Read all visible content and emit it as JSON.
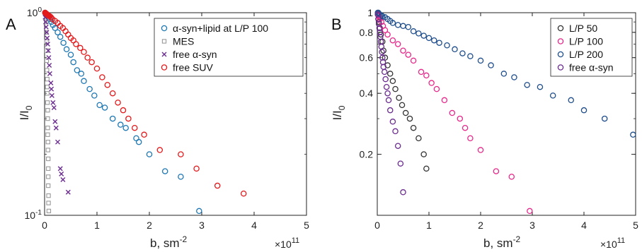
{
  "chart_data": [
    {
      "panel_label": "A",
      "type": "scatter",
      "xlabel": "b, sm",
      "xlabel_sup": "-2",
      "ylabel": "I/I",
      "ylabel_sub": "0",
      "x_multiplier_base": "×10",
      "x_multiplier_exp": "11",
      "xlim": [
        0,
        5
      ],
      "ylim": [
        0.1,
        1
      ],
      "y_scale": "log",
      "x_ticks": [
        0,
        1,
        2,
        3,
        4,
        5
      ],
      "x_tick_labels": [
        "0",
        "1",
        "2",
        "3",
        "4",
        "5"
      ],
      "y_tick_values": [
        0.1,
        1
      ],
      "y_tick_base": "10",
      "y_tick_exps": [
        "-1",
        "0"
      ],
      "legend_position": "top-right",
      "series": [
        {
          "name": "α-syn+lipid at L/P 100",
          "marker": "circle",
          "color": "#1f78b4",
          "points": [
            [
              0.01,
              1.0
            ],
            [
              0.02,
              0.99
            ],
            [
              0.03,
              0.98
            ],
            [
              0.05,
              0.97
            ],
            [
              0.07,
              0.95
            ],
            [
              0.1,
              0.93
            ],
            [
              0.13,
              0.9
            ],
            [
              0.16,
              0.87
            ],
            [
              0.2,
              0.84
            ],
            [
              0.25,
              0.8
            ],
            [
              0.3,
              0.76
            ],
            [
              0.36,
              0.71
            ],
            [
              0.42,
              0.66
            ],
            [
              0.5,
              0.62
            ],
            [
              0.55,
              0.57
            ],
            [
              0.62,
              0.52
            ],
            [
              0.7,
              0.5
            ],
            [
              0.75,
              0.46
            ],
            [
              0.86,
              0.42
            ],
            [
              0.95,
              0.39
            ],
            [
              1.05,
              0.35
            ],
            [
              1.15,
              0.34
            ],
            [
              1.3,
              0.3
            ],
            [
              1.45,
              0.28
            ],
            [
              1.55,
              0.27
            ],
            [
              1.75,
              0.24
            ],
            [
              1.8,
              0.23
            ],
            [
              2.0,
              0.2
            ],
            [
              2.3,
              0.165
            ],
            [
              2.6,
              0.155
            ],
            [
              2.95,
              0.105
            ]
          ]
        },
        {
          "name": "MES",
          "marker": "square",
          "color": "#999999",
          "points": [
            [
              0.02,
              0.98
            ],
            [
              0.03,
              0.9
            ],
            [
              0.03,
              0.8
            ],
            [
              0.035,
              0.72
            ],
            [
              0.04,
              0.65
            ],
            [
              0.04,
              0.58
            ],
            [
              0.045,
              0.52
            ],
            [
              0.05,
              0.47
            ],
            [
              0.05,
              0.43
            ],
            [
              0.05,
              0.4
            ],
            [
              0.055,
              0.36
            ],
            [
              0.06,
              0.33
            ],
            [
              0.06,
              0.3
            ],
            [
              0.06,
              0.27
            ],
            [
              0.06,
              0.25
            ],
            [
              0.065,
              0.23
            ],
            [
              0.065,
              0.21
            ],
            [
              0.07,
              0.19
            ],
            [
              0.07,
              0.17
            ],
            [
              0.07,
              0.155
            ],
            [
              0.07,
              0.14
            ],
            [
              0.075,
              0.125
            ],
            [
              0.075,
              0.115
            ],
            [
              0.08,
              0.105
            ]
          ]
        },
        {
          "name": "free α-syn",
          "marker": "x",
          "color": "#6a2c8f",
          "points": [
            [
              0.01,
              0.95
            ],
            [
              0.02,
              0.9
            ],
            [
              0.03,
              0.85
            ],
            [
              0.04,
              0.8
            ],
            [
              0.05,
              0.75
            ],
            [
              0.06,
              0.7
            ],
            [
              0.07,
              0.65
            ],
            [
              0.08,
              0.6
            ],
            [
              0.09,
              0.55
            ],
            [
              0.1,
              0.5
            ],
            [
              0.12,
              0.45
            ],
            [
              0.13,
              0.42
            ],
            [
              0.14,
              0.39
            ],
            [
              0.16,
              0.36
            ],
            [
              0.18,
              0.34
            ],
            [
              0.2,
              0.29
            ],
            [
              0.22,
              0.27
            ],
            [
              0.25,
              0.23
            ],
            [
              0.3,
              0.17
            ],
            [
              0.32,
              0.16
            ],
            [
              0.35,
              0.15
            ],
            [
              0.45,
              0.13
            ]
          ]
        },
        {
          "name": "free SUV",
          "marker": "circle",
          "color": "#e31a1c",
          "points": [
            [
              0.01,
              1.0
            ],
            [
              0.02,
              0.995
            ],
            [
              0.03,
              0.99
            ],
            [
              0.04,
              0.985
            ],
            [
              0.05,
              0.98
            ],
            [
              0.06,
              0.975
            ],
            [
              0.07,
              0.97
            ],
            [
              0.08,
              0.965
            ],
            [
              0.1,
              0.96
            ],
            [
              0.12,
              0.95
            ],
            [
              0.15,
              0.93
            ],
            [
              0.2,
              0.91
            ],
            [
              0.25,
              0.89
            ],
            [
              0.3,
              0.86
            ],
            [
              0.35,
              0.84
            ],
            [
              0.4,
              0.81
            ],
            [
              0.45,
              0.78
            ],
            [
              0.5,
              0.75
            ],
            [
              0.55,
              0.73
            ],
            [
              0.6,
              0.7
            ],
            [
              0.68,
              0.67
            ],
            [
              0.75,
              0.64
            ],
            [
              0.82,
              0.6
            ],
            [
              0.9,
              0.57
            ],
            [
              1.0,
              0.53
            ],
            [
              1.1,
              0.48
            ],
            [
              1.2,
              0.44
            ],
            [
              1.3,
              0.4
            ],
            [
              1.4,
              0.36
            ],
            [
              1.5,
              0.33
            ],
            [
              1.6,
              0.3
            ],
            [
              1.72,
              0.27
            ],
            [
              1.9,
              0.25
            ],
            [
              2.2,
              0.21
            ],
            [
              2.6,
              0.2
            ],
            [
              2.9,
              0.17
            ],
            [
              3.3,
              0.14
            ],
            [
              3.8,
              0.128
            ]
          ]
        }
      ]
    },
    {
      "panel_label": "B",
      "type": "scatter",
      "xlabel": "b, sm",
      "xlabel_sup": "-2",
      "ylabel": "I/I",
      "ylabel_sub": "0",
      "x_multiplier_base": "×10",
      "x_multiplier_exp": "11",
      "xlim": [
        0,
        5
      ],
      "ylim": [
        0.1,
        1
      ],
      "y_scale": "log",
      "x_ticks": [
        0,
        1,
        2,
        3,
        4,
        5
      ],
      "x_tick_labels": [
        "0",
        "1",
        "2",
        "3",
        "4",
        "5"
      ],
      "y_tick_values": [
        0.2,
        0.4,
        0.6,
        0.8,
        1
      ],
      "y_tick_labels": [
        "0.2",
        "0.4",
        "0.6",
        "0.8",
        "1"
      ],
      "legend_position": "top-right",
      "series": [
        {
          "name": "L/P 50",
          "marker": "circle",
          "color": "#333333",
          "points": [
            [
              0.01,
              0.98
            ],
            [
              0.02,
              0.93
            ],
            [
              0.03,
              0.9
            ],
            [
              0.05,
              0.84
            ],
            [
              0.07,
              0.78
            ],
            [
              0.1,
              0.72
            ],
            [
              0.12,
              0.65
            ],
            [
              0.15,
              0.6
            ],
            [
              0.2,
              0.55
            ],
            [
              0.25,
              0.5
            ],
            [
              0.3,
              0.46
            ],
            [
              0.35,
              0.42
            ],
            [
              0.42,
              0.38
            ],
            [
              0.48,
              0.35
            ],
            [
              0.55,
              0.32
            ],
            [
              0.63,
              0.3
            ],
            [
              0.7,
              0.27
            ],
            [
              0.8,
              0.24
            ],
            [
              0.9,
              0.2
            ],
            [
              0.95,
              0.17
            ]
          ]
        },
        {
          "name": "L/P 100",
          "marker": "circle",
          "color": "#e7298a",
          "points": [
            [
              0.01,
              0.99
            ],
            [
              0.02,
              0.97
            ],
            [
              0.03,
              0.96
            ],
            [
              0.05,
              0.93
            ],
            [
              0.08,
              0.9
            ],
            [
              0.11,
              0.86
            ],
            [
              0.15,
              0.82
            ],
            [
              0.2,
              0.78
            ],
            [
              0.3,
              0.73
            ],
            [
              0.4,
              0.7
            ],
            [
              0.5,
              0.65
            ],
            [
              0.6,
              0.62
            ],
            [
              0.7,
              0.58
            ],
            [
              0.85,
              0.51
            ],
            [
              0.95,
              0.49
            ],
            [
              1.05,
              0.45
            ],
            [
              1.15,
              0.42
            ],
            [
              1.3,
              0.37
            ],
            [
              1.45,
              0.32
            ],
            [
              1.6,
              0.3
            ],
            [
              1.7,
              0.27
            ],
            [
              1.8,
              0.24
            ],
            [
              2.0,
              0.21
            ],
            [
              2.3,
              0.165
            ],
            [
              2.6,
              0.155
            ],
            [
              2.95,
              0.105
            ]
          ]
        },
        {
          "name": "L/P 200",
          "marker": "circle",
          "color": "#1f4e8c",
          "points": [
            [
              0.01,
              1.0
            ],
            [
              0.02,
              1.0
            ],
            [
              0.03,
              0.99
            ],
            [
              0.05,
              0.98
            ],
            [
              0.08,
              0.97
            ],
            [
              0.1,
              0.96
            ],
            [
              0.15,
              0.95
            ],
            [
              0.2,
              0.93
            ],
            [
              0.25,
              0.91
            ],
            [
              0.3,
              0.89
            ],
            [
              0.4,
              0.87
            ],
            [
              0.5,
              0.86
            ],
            [
              0.6,
              0.85
            ],
            [
              0.7,
              0.81
            ],
            [
              0.8,
              0.79
            ],
            [
              0.9,
              0.77
            ],
            [
              1.0,
              0.75
            ],
            [
              1.1,
              0.73
            ],
            [
              1.2,
              0.71
            ],
            [
              1.35,
              0.69
            ],
            [
              1.5,
              0.66
            ],
            [
              1.65,
              0.63
            ],
            [
              1.8,
              0.61
            ],
            [
              2.0,
              0.58
            ],
            [
              2.2,
              0.55
            ],
            [
              2.45,
              0.5
            ],
            [
              2.65,
              0.48
            ],
            [
              2.9,
              0.44
            ],
            [
              3.15,
              0.43
            ],
            [
              3.4,
              0.39
            ],
            [
              3.75,
              0.37
            ],
            [
              4.0,
              0.33
            ],
            [
              4.4,
              0.3
            ],
            [
              4.95,
              0.25
            ]
          ]
        },
        {
          "name": "free α-syn",
          "marker": "circle",
          "color": "#6a2c8f",
          "points": [
            [
              0.01,
              0.98
            ],
            [
              0.02,
              0.93
            ],
            [
              0.03,
              0.88
            ],
            [
              0.04,
              0.84
            ],
            [
              0.05,
              0.8
            ],
            [
              0.06,
              0.76
            ],
            [
              0.07,
              0.72
            ],
            [
              0.08,
              0.68
            ],
            [
              0.09,
              0.64
            ],
            [
              0.1,
              0.6
            ],
            [
              0.11,
              0.57
            ],
            [
              0.12,
              0.54
            ],
            [
              0.14,
              0.51
            ],
            [
              0.16,
              0.47
            ],
            [
              0.18,
              0.43
            ],
            [
              0.2,
              0.4
            ],
            [
              0.22,
              0.37
            ],
            [
              0.25,
              0.33
            ],
            [
              0.3,
              0.29
            ],
            [
              0.35,
              0.26
            ],
            [
              0.4,
              0.22
            ],
            [
              0.45,
              0.18
            ],
            [
              0.5,
              0.13
            ]
          ]
        }
      ]
    }
  ]
}
